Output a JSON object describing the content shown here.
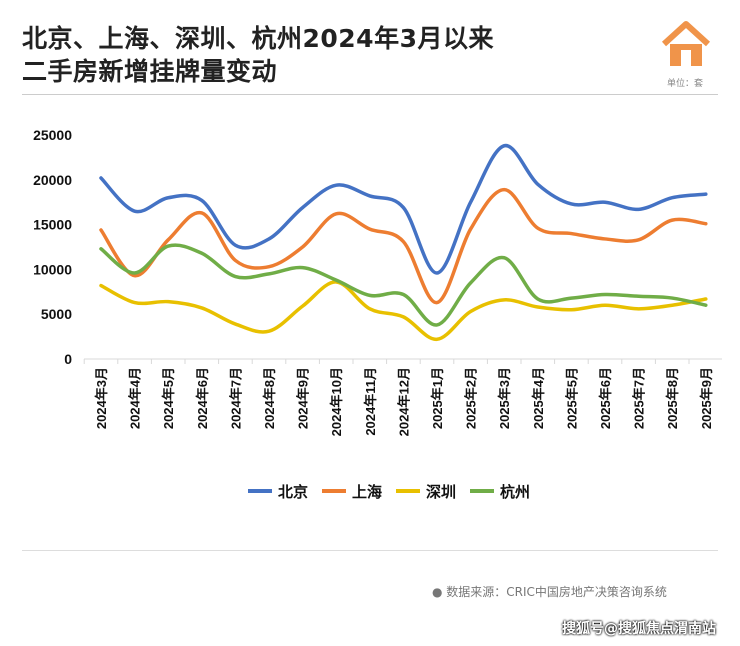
{
  "title_line1": "北京、上海、深圳、杭州2024年3月以来",
  "title_line2": "二手房新增挂牌量变动",
  "unit": "单位：套",
  "source": "● 数据来源：CRIC中国房地产决策咨询系统",
  "watermark": "搜狐号@搜狐焦点渭南站",
  "chart_data": {
    "type": "line",
    "title": "北京、上海、深圳、杭州2024年3月以来二手房新增挂牌量变动",
    "ylabel": "单位：套",
    "ylim": [
      0,
      25000
    ],
    "yticks": [
      0,
      5000,
      10000,
      15000,
      20000,
      25000
    ],
    "grid": false,
    "legend": "bottom",
    "categories": [
      "2024年3月",
      "2024年4月",
      "2024年5月",
      "2024年6月",
      "2024年7月",
      "2024年8月",
      "2024年9月",
      "2024年10月",
      "2024年11月",
      "2024年12月",
      "2025年1月",
      "2025年2月",
      "2025年3月",
      "2025年4月",
      "2025年5月",
      "2025年6月",
      "2025年7月",
      "2025年8月",
      "2025年9月"
    ],
    "series": [
      {
        "name": "北京",
        "color": "#4472c4",
        "values": [
          20200,
          16500,
          18000,
          17700,
          12700,
          13400,
          16900,
          19400,
          18200,
          16900,
          9600,
          17500,
          23800,
          19500,
          17300,
          17500,
          16700,
          18000,
          18400
        ]
      },
      {
        "name": "上海",
        "color": "#ed7d31",
        "values": [
          14400,
          9300,
          13300,
          16300,
          11000,
          10300,
          12500,
          16200,
          14500,
          13100,
          6300,
          14500,
          18900,
          14600,
          14000,
          13400,
          13300,
          15500,
          15100
        ]
      },
      {
        "name": "深圳",
        "color": "#e8c000",
        "values": [
          8200,
          6300,
          6400,
          5700,
          3900,
          3100,
          5900,
          8600,
          5600,
          4700,
          2200,
          5300,
          6600,
          5800,
          5500,
          6000,
          5600,
          6000,
          6700
        ]
      },
      {
        "name": "杭州",
        "color": "#70ad47",
        "values": [
          12300,
          9600,
          12600,
          11800,
          9200,
          9500,
          10200,
          8800,
          7100,
          7200,
          3800,
          8500,
          11300,
          6700,
          6800,
          7200,
          7000,
          6800,
          6000
        ]
      }
    ]
  }
}
